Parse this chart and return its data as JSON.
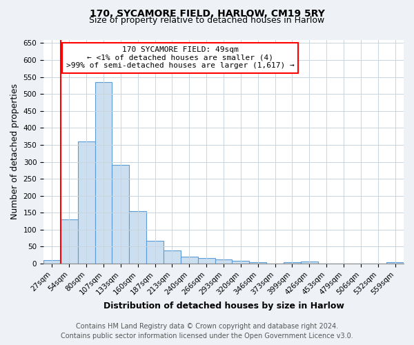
{
  "title": "170, SYCAMORE FIELD, HARLOW, CM19 5RY",
  "subtitle": "Size of property relative to detached houses in Harlow",
  "xlabel": "Distribution of detached houses by size in Harlow",
  "ylabel": "Number of detached properties",
  "categories": [
    "27sqm",
    "54sqm",
    "80sqm",
    "107sqm",
    "133sqm",
    "160sqm",
    "187sqm",
    "213sqm",
    "240sqm",
    "266sqm",
    "293sqm",
    "320sqm",
    "346sqm",
    "373sqm",
    "399sqm",
    "426sqm",
    "453sqm",
    "479sqm",
    "506sqm",
    "532sqm",
    "559sqm"
  ],
  "values": [
    10,
    130,
    360,
    535,
    290,
    155,
    68,
    38,
    20,
    16,
    12,
    9,
    4,
    0,
    4,
    6,
    0,
    0,
    0,
    0,
    5
  ],
  "bar_color": "#ccdff0",
  "bar_edge_color": "#5b9bd5",
  "bar_linewidth": 0.8,
  "ylim": [
    0,
    660
  ],
  "yticks": [
    0,
    50,
    100,
    150,
    200,
    250,
    300,
    350,
    400,
    450,
    500,
    550,
    600,
    650
  ],
  "annotation_line1": "170 SYCAMORE FIELD: 49sqm",
  "annotation_line2": "← <1% of detached houses are smaller (4)",
  "annotation_line3": ">99% of semi-detached houses are larger (1,617) →",
  "annotation_box_color": "white",
  "annotation_box_edgecolor": "red",
  "footer_line1": "Contains HM Land Registry data © Crown copyright and database right 2024.",
  "footer_line2": "Contains public sector information licensed under the Open Government Licence v3.0.",
  "bg_color": "#eef2f6",
  "plot_bg_color": "white",
  "grid_color": "#c8d4de",
  "title_fontsize": 10,
  "subtitle_fontsize": 9,
  "axis_label_fontsize": 9,
  "tick_fontsize": 7.5,
  "footer_fontsize": 7,
  "annot_fontsize": 8
}
